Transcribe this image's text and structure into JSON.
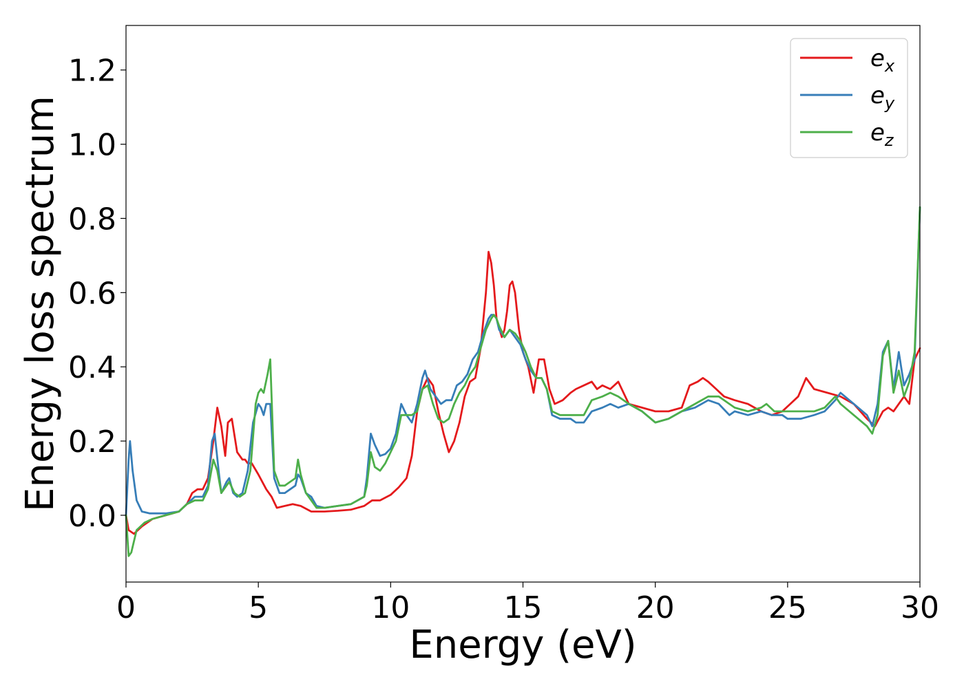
{
  "chart_data": {
    "type": "line",
    "title": "",
    "xlabel": "Energy (eV)",
    "ylabel": "Energy loss spectrum",
    "xlim": [
      0,
      30
    ],
    "ylim": [
      -0.18,
      1.32
    ],
    "xticks": [
      0,
      5,
      10,
      15,
      20,
      25,
      30
    ],
    "xtick_labels": [
      "0",
      "5",
      "10",
      "15",
      "20",
      "25",
      "30"
    ],
    "yticks": [
      0.0,
      0.2,
      0.4,
      0.6,
      0.8,
      1.0,
      1.2
    ],
    "ytick_labels": [
      "0.0",
      "0.2",
      "0.4",
      "0.6",
      "0.8",
      "1.0",
      "1.2"
    ],
    "grid": false,
    "legend_position": "top-right",
    "series": [
      {
        "name": "e_x",
        "legend_base": "e",
        "legend_sub": "x",
        "color": "#e41a1c",
        "x": [
          0,
          0.1,
          0.3,
          0.6,
          1.0,
          1.5,
          2.0,
          2.3,
          2.5,
          2.7,
          2.9,
          3.1,
          3.3,
          3.45,
          3.6,
          3.75,
          3.85,
          4.0,
          4.2,
          4.4,
          4.5,
          4.6,
          4.75,
          5.0,
          5.3,
          5.5,
          5.7,
          6.0,
          6.3,
          6.6,
          7.0,
          7.5,
          8.0,
          8.5,
          9.0,
          9.3,
          9.6,
          10.0,
          10.3,
          10.6,
          10.8,
          11.0,
          11.2,
          11.4,
          11.6,
          11.8,
          12.0,
          12.2,
          12.4,
          12.6,
          12.8,
          13.0,
          13.2,
          13.4,
          13.6,
          13.7,
          13.8,
          13.9,
          14.0,
          14.2,
          14.3,
          14.4,
          14.5,
          14.6,
          14.7,
          14.85,
          15.0,
          15.2,
          15.4,
          15.6,
          15.8,
          16.0,
          16.2,
          16.5,
          16.8,
          17.0,
          17.3,
          17.6,
          17.8,
          18.0,
          18.3,
          18.6,
          19.0,
          19.5,
          20.0,
          20.5,
          21.0,
          21.3,
          21.6,
          21.8,
          22.0,
          22.3,
          22.6,
          23.0,
          23.5,
          24.0,
          24.4,
          24.8,
          25.1,
          25.4,
          25.7,
          26.0,
          26.5,
          27.0,
          27.5,
          28.0,
          28.3,
          28.6,
          28.8,
          29.0,
          29.2,
          29.4,
          29.6,
          29.8,
          30.0
        ],
        "y": [
          0.0,
          -0.04,
          -0.05,
          -0.03,
          -0.01,
          0.0,
          0.01,
          0.03,
          0.06,
          0.07,
          0.07,
          0.1,
          0.2,
          0.29,
          0.24,
          0.16,
          0.25,
          0.26,
          0.17,
          0.15,
          0.15,
          0.14,
          0.14,
          0.11,
          0.07,
          0.05,
          0.02,
          0.025,
          0.03,
          0.025,
          0.01,
          0.01,
          0.012,
          0.015,
          0.025,
          0.04,
          0.04,
          0.055,
          0.075,
          0.1,
          0.16,
          0.28,
          0.34,
          0.37,
          0.35,
          0.28,
          0.22,
          0.17,
          0.2,
          0.25,
          0.32,
          0.36,
          0.37,
          0.45,
          0.6,
          0.71,
          0.68,
          0.62,
          0.53,
          0.48,
          0.5,
          0.55,
          0.62,
          0.63,
          0.6,
          0.5,
          0.44,
          0.4,
          0.33,
          0.42,
          0.42,
          0.34,
          0.3,
          0.31,
          0.33,
          0.34,
          0.35,
          0.36,
          0.34,
          0.35,
          0.34,
          0.36,
          0.3,
          0.29,
          0.28,
          0.28,
          0.29,
          0.35,
          0.36,
          0.37,
          0.36,
          0.34,
          0.32,
          0.31,
          0.3,
          0.28,
          0.27,
          0.28,
          0.3,
          0.32,
          0.37,
          0.34,
          0.33,
          0.32,
          0.3,
          0.26,
          0.24,
          0.28,
          0.29,
          0.28,
          0.3,
          0.32,
          0.3,
          0.42,
          0.45
        ]
      },
      {
        "name": "e_y",
        "legend_base": "e",
        "legend_sub": "y",
        "color": "#377eb8",
        "x": [
          0,
          0.1,
          0.15,
          0.25,
          0.4,
          0.6,
          0.9,
          1.5,
          2.0,
          2.3,
          2.6,
          2.9,
          3.1,
          3.25,
          3.35,
          3.5,
          3.6,
          3.8,
          3.9,
          4.05,
          4.2,
          4.4,
          4.6,
          4.8,
          5.0,
          5.1,
          5.2,
          5.3,
          5.45,
          5.6,
          5.8,
          6.0,
          6.2,
          6.4,
          6.5,
          6.6,
          6.8,
          7.0,
          7.2,
          7.5,
          8.0,
          8.5,
          9.0,
          9.1,
          9.25,
          9.4,
          9.6,
          9.8,
          10.0,
          10.2,
          10.4,
          10.6,
          10.8,
          11.0,
          11.2,
          11.3,
          11.5,
          11.7,
          11.9,
          12.1,
          12.3,
          12.5,
          12.7,
          12.9,
          13.1,
          13.3,
          13.5,
          13.7,
          13.8,
          13.9,
          14.0,
          14.1,
          14.3,
          14.5,
          14.7,
          14.9,
          15.1,
          15.3,
          15.5,
          15.7,
          15.9,
          16.1,
          16.4,
          16.8,
          17.0,
          17.3,
          17.6,
          18.0,
          18.3,
          18.6,
          19.0,
          19.5,
          20.0,
          20.5,
          21.0,
          21.5,
          22.0,
          22.4,
          22.8,
          23.0,
          23.5,
          24.0,
          24.4,
          24.8,
          25.0,
          25.5,
          26.0,
          26.4,
          26.8,
          27.0,
          27.5,
          28.0,
          28.2,
          28.4,
          28.6,
          28.8,
          29.0,
          29.2,
          29.4,
          29.6,
          29.8,
          30.0
        ],
        "y": [
          0.0,
          0.15,
          0.2,
          0.12,
          0.04,
          0.01,
          0.005,
          0.005,
          0.01,
          0.03,
          0.05,
          0.05,
          0.08,
          0.2,
          0.22,
          0.12,
          0.06,
          0.09,
          0.1,
          0.06,
          0.05,
          0.06,
          0.12,
          0.25,
          0.3,
          0.29,
          0.27,
          0.3,
          0.3,
          0.1,
          0.06,
          0.06,
          0.07,
          0.08,
          0.11,
          0.1,
          0.06,
          0.05,
          0.025,
          0.02,
          0.025,
          0.03,
          0.05,
          0.1,
          0.22,
          0.19,
          0.16,
          0.165,
          0.18,
          0.22,
          0.3,
          0.27,
          0.25,
          0.3,
          0.37,
          0.39,
          0.34,
          0.32,
          0.3,
          0.31,
          0.31,
          0.35,
          0.36,
          0.38,
          0.42,
          0.44,
          0.49,
          0.53,
          0.54,
          0.54,
          0.53,
          0.5,
          0.48,
          0.5,
          0.48,
          0.46,
          0.42,
          0.39,
          0.37,
          0.37,
          0.34,
          0.27,
          0.26,
          0.26,
          0.25,
          0.25,
          0.28,
          0.29,
          0.3,
          0.29,
          0.3,
          0.28,
          0.25,
          0.26,
          0.28,
          0.29,
          0.31,
          0.3,
          0.27,
          0.28,
          0.27,
          0.28,
          0.27,
          0.27,
          0.26,
          0.26,
          0.27,
          0.28,
          0.31,
          0.33,
          0.3,
          0.27,
          0.24,
          0.3,
          0.44,
          0.47,
          0.34,
          0.44,
          0.35,
          0.38,
          0.42,
          0.83
        ]
      },
      {
        "name": "e_z",
        "legend_base": "e",
        "legend_sub": "z",
        "color": "#4daf4a",
        "x": [
          0,
          0.1,
          0.2,
          0.4,
          0.7,
          1.0,
          1.5,
          2.0,
          2.3,
          2.6,
          2.9,
          3.1,
          3.3,
          3.45,
          3.6,
          3.8,
          3.9,
          4.1,
          4.3,
          4.5,
          4.7,
          4.9,
          5.0,
          5.1,
          5.2,
          5.35,
          5.45,
          5.6,
          5.8,
          6.0,
          6.2,
          6.4,
          6.5,
          6.6,
          6.8,
          7.0,
          7.2,
          7.5,
          8.0,
          8.5,
          9.0,
          9.1,
          9.25,
          9.4,
          9.6,
          9.8,
          10.0,
          10.2,
          10.4,
          10.6,
          10.8,
          11.0,
          11.2,
          11.4,
          11.6,
          11.8,
          12.0,
          12.2,
          12.4,
          12.6,
          12.8,
          13.0,
          13.2,
          13.4,
          13.6,
          13.8,
          13.9,
          14.0,
          14.1,
          14.3,
          14.5,
          14.7,
          14.9,
          15.1,
          15.3,
          15.5,
          15.7,
          15.9,
          16.1,
          16.4,
          16.8,
          17.0,
          17.3,
          17.6,
          18.0,
          18.3,
          18.6,
          19.0,
          19.5,
          20.0,
          20.5,
          21.0,
          21.5,
          22.0,
          22.4,
          22.8,
          23.0,
          23.5,
          24.0,
          24.2,
          24.5,
          25.0,
          25.5,
          26.0,
          26.4,
          26.8,
          27.0,
          27.5,
          28.0,
          28.2,
          28.4,
          28.6,
          28.8,
          29.0,
          29.2,
          29.4,
          29.6,
          29.8,
          30.0
        ],
        "y": [
          0.0,
          -0.11,
          -0.1,
          -0.04,
          -0.02,
          -0.01,
          0.0,
          0.01,
          0.03,
          0.04,
          0.04,
          0.07,
          0.15,
          0.12,
          0.06,
          0.08,
          0.09,
          0.06,
          0.05,
          0.06,
          0.12,
          0.3,
          0.33,
          0.34,
          0.33,
          0.38,
          0.42,
          0.12,
          0.08,
          0.08,
          0.09,
          0.1,
          0.15,
          0.11,
          0.06,
          0.04,
          0.02,
          0.02,
          0.025,
          0.03,
          0.05,
          0.08,
          0.17,
          0.13,
          0.12,
          0.14,
          0.17,
          0.2,
          0.27,
          0.27,
          0.27,
          0.28,
          0.34,
          0.35,
          0.3,
          0.26,
          0.25,
          0.26,
          0.3,
          0.33,
          0.35,
          0.38,
          0.4,
          0.45,
          0.5,
          0.53,
          0.54,
          0.53,
          0.51,
          0.48,
          0.5,
          0.49,
          0.47,
          0.44,
          0.4,
          0.37,
          0.37,
          0.34,
          0.28,
          0.27,
          0.27,
          0.27,
          0.27,
          0.31,
          0.32,
          0.33,
          0.32,
          0.3,
          0.28,
          0.25,
          0.26,
          0.28,
          0.3,
          0.32,
          0.32,
          0.3,
          0.29,
          0.28,
          0.29,
          0.3,
          0.28,
          0.28,
          0.28,
          0.28,
          0.29,
          0.32,
          0.3,
          0.27,
          0.24,
          0.22,
          0.27,
          0.43,
          0.47,
          0.33,
          0.39,
          0.32,
          0.36,
          0.44,
          0.83
        ]
      }
    ]
  }
}
